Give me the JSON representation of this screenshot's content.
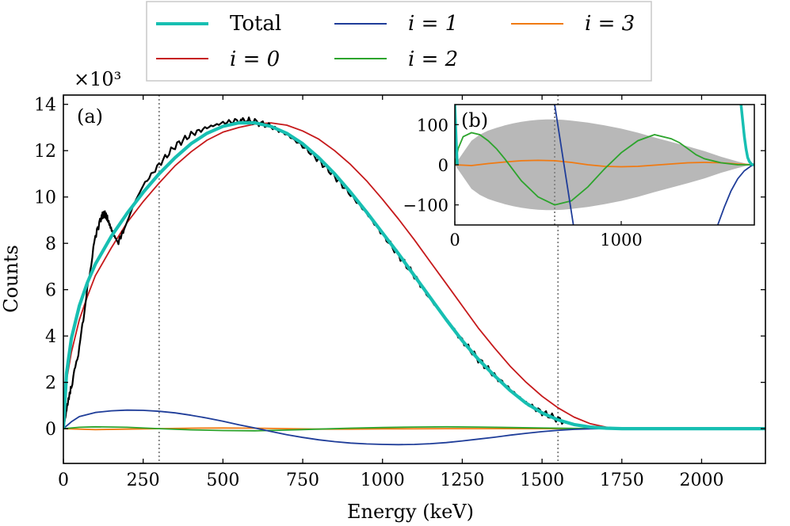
{
  "chart_data": [
    {
      "type": "line",
      "panel_label": "(a)",
      "xlabel": "Energy (keV)",
      "ylabel": "Counts",
      "yscale_label": "×10³",
      "xlim": [
        0,
        2200
      ],
      "ylim": [
        -1.5,
        14.4
      ],
      "xticks": [
        0,
        250,
        500,
        750,
        1000,
        1250,
        1500,
        1750,
        2000
      ],
      "yticks": [
        0,
        2,
        4,
        6,
        8,
        10,
        12,
        14
      ],
      "vlines": [
        300,
        1550
      ],
      "legend": {
        "placement": "top-center",
        "entries": [
          {
            "label": "Total",
            "color": "#17bfb2"
          },
          {
            "label": "i = 0",
            "color": "#c6191b"
          },
          {
            "label": "i = 1",
            "color": "#1f3d99"
          },
          {
            "label": "i = 2",
            "color": "#2ca42c"
          },
          {
            "label": "i = 3",
            "color": "#f07a12"
          }
        ]
      },
      "series": [
        {
          "name": "Data",
          "color": "#000000",
          "x": [
            0,
            10,
            25,
            50,
            75,
            100,
            120,
            130,
            140,
            155,
            170,
            190,
            220,
            250,
            300,
            350,
            400,
            450,
            500,
            550,
            575,
            600,
            650,
            700,
            750,
            800,
            850,
            900,
            950,
            1000,
            1050,
            1100,
            1150,
            1200,
            1250,
            1300,
            1350,
            1400,
            1450,
            1500,
            1550,
            1600,
            1650,
            1700,
            1750,
            1800,
            2000,
            2200
          ],
          "y": [
            0,
            0.8,
            1.8,
            3.5,
            6.0,
            8.3,
            9.2,
            9.25,
            9.0,
            8.4,
            8.0,
            8.6,
            9.7,
            10.5,
            11.4,
            12.2,
            12.7,
            13.0,
            13.2,
            13.3,
            13.3,
            13.25,
            13.05,
            12.7,
            12.2,
            11.6,
            10.9,
            10.1,
            9.3,
            8.4,
            7.5,
            6.6,
            5.6,
            4.7,
            3.8,
            3.0,
            2.3,
            1.7,
            1.1,
            0.7,
            0.4,
            0.18,
            0.07,
            0.02,
            0.0,
            0.0,
            0.0,
            0.0
          ]
        },
        {
          "name": "Total",
          "color": "#17bfb2",
          "x": [
            0,
            10,
            25,
            50,
            75,
            100,
            150,
            200,
            250,
            300,
            350,
            400,
            450,
            500,
            550,
            600,
            650,
            700,
            750,
            800,
            850,
            900,
            950,
            1000,
            1050,
            1100,
            1150,
            1200,
            1250,
            1300,
            1350,
            1400,
            1450,
            1500,
            1550,
            1600,
            1650,
            1700,
            1750,
            1800,
            2000,
            2200
          ],
          "y": [
            0,
            2.4,
            3.9,
            5.3,
            6.3,
            7.1,
            8.3,
            9.3,
            10.2,
            11.0,
            11.7,
            12.3,
            12.75,
            13.05,
            13.2,
            13.2,
            13.05,
            12.75,
            12.3,
            11.7,
            11.0,
            10.2,
            9.35,
            8.45,
            7.55,
            6.6,
            5.65,
            4.7,
            3.8,
            3.0,
            2.3,
            1.65,
            1.1,
            0.68,
            0.38,
            0.18,
            0.07,
            0.02,
            0.0,
            0.0,
            0.0,
            0.0
          ]
        },
        {
          "name": "i = 0",
          "color": "#c6191b",
          "x": [
            0,
            10,
            25,
            50,
            75,
            100,
            150,
            200,
            250,
            300,
            350,
            400,
            450,
            500,
            550,
            600,
            650,
            700,
            750,
            800,
            850,
            900,
            950,
            1000,
            1050,
            1100,
            1150,
            1200,
            1250,
            1300,
            1350,
            1400,
            1450,
            1500,
            1550,
            1600,
            1650,
            1700,
            1750,
            2000,
            2200
          ],
          "y": [
            0,
            2.1,
            3.3,
            4.7,
            5.7,
            6.6,
            7.8,
            8.9,
            9.8,
            10.6,
            11.35,
            11.95,
            12.45,
            12.8,
            13.0,
            13.15,
            13.2,
            13.1,
            12.85,
            12.5,
            12.0,
            11.4,
            10.7,
            9.9,
            9.05,
            8.15,
            7.2,
            6.25,
            5.3,
            4.35,
            3.5,
            2.7,
            2.0,
            1.4,
            0.9,
            0.5,
            0.22,
            0.07,
            0.0,
            0.0,
            0.0
          ]
        },
        {
          "name": "i = 1",
          "color": "#1f3d99",
          "x": [
            0,
            25,
            50,
            100,
            150,
            200,
            250,
            300,
            350,
            400,
            450,
            500,
            550,
            600,
            650,
            700,
            750,
            800,
            850,
            900,
            950,
            1000,
            1050,
            1100,
            1150,
            1200,
            1250,
            1300,
            1350,
            1400,
            1450,
            1500,
            1550,
            1600,
            1650,
            1700,
            1750,
            2000,
            2200
          ],
          "y": [
            0,
            0.3,
            0.52,
            0.7,
            0.77,
            0.8,
            0.79,
            0.75,
            0.68,
            0.58,
            0.46,
            0.32,
            0.17,
            0.03,
            -0.12,
            -0.26,
            -0.38,
            -0.48,
            -0.56,
            -0.62,
            -0.66,
            -0.68,
            -0.69,
            -0.68,
            -0.65,
            -0.6,
            -0.53,
            -0.45,
            -0.37,
            -0.28,
            -0.2,
            -0.13,
            -0.07,
            -0.03,
            -0.01,
            0.0,
            0.0,
            0.0,
            0.0
          ]
        },
        {
          "name": "i = 2",
          "color": "#2ca42c",
          "x": [
            0,
            50,
            100,
            200,
            300,
            400,
            500,
            600,
            700,
            800,
            900,
            1000,
            1100,
            1200,
            1300,
            1400,
            1500,
            1600,
            1700,
            1800,
            2000,
            2200
          ],
          "y": [
            0,
            0.06,
            0.08,
            0.06,
            0.0,
            -0.05,
            -0.08,
            -0.09,
            -0.06,
            -0.02,
            0.02,
            0.05,
            0.07,
            0.08,
            0.07,
            0.05,
            0.03,
            0.01,
            0.0,
            0.0,
            0.0,
            0.0
          ]
        },
        {
          "name": "i = 3",
          "color": "#f07a12",
          "x": [
            0,
            100,
            200,
            300,
            400,
            500,
            600,
            700,
            800,
            900,
            1000,
            1200,
            1400,
            1600,
            1800,
            2200
          ],
          "y": [
            0,
            -0.04,
            -0.02,
            0.0,
            0.02,
            0.03,
            0.02,
            0.0,
            -0.02,
            -0.02,
            -0.01,
            0.0,
            0.0,
            0.0,
            0.0,
            0.0
          ]
        }
      ]
    },
    {
      "type": "line",
      "panel_label": "(b)",
      "placement": "inset top-right",
      "xlim": [
        0,
        1800
      ],
      "ylim": [
        -150,
        150
      ],
      "xticks": [
        0,
        1000
      ],
      "yticks": [
        -100,
        0,
        100
      ],
      "vlines": [
        600
      ],
      "band": {
        "name": "uncertainty",
        "color": "#b8b8b8",
        "x": [
          0,
          50,
          100,
          150,
          200,
          250,
          300,
          350,
          400,
          450,
          500,
          550,
          600,
          650,
          700,
          800,
          900,
          1000,
          1100,
          1200,
          1300,
          1400,
          1500,
          1600,
          1700,
          1750,
          1800
        ],
        "upper": [
          0,
          30,
          60,
          75,
          85,
          92,
          98,
          103,
          107,
          110,
          112,
          113,
          113,
          112,
          110,
          105,
          98,
          90,
          80,
          68,
          57,
          46,
          34,
          20,
          8,
          3,
          0
        ],
        "lower": [
          0,
          -30,
          -60,
          -75,
          -85,
          -92,
          -98,
          -103,
          -107,
          -110,
          -112,
          -113,
          -113,
          -112,
          -110,
          -105,
          -98,
          -90,
          -80,
          -68,
          -57,
          -46,
          -34,
          -20,
          -8,
          -3,
          0
        ]
      },
      "series": [
        {
          "name": "Total",
          "color": "#17bfb2",
          "x": [
            0,
            8,
            15,
            1720,
            1730,
            1740,
            1750,
            1760,
            1770,
            1780,
            1790,
            1800
          ],
          "y": [
            150,
            60,
            0,
            150,
            110,
            70,
            40,
            18,
            8,
            3,
            0,
            0
          ]
        },
        {
          "name": "i = 1",
          "color": "#1f3d99",
          "x": [
            600,
            630,
            660,
            690,
            720,
            1580,
            1620,
            1660,
            1700,
            1740,
            1780,
            1800
          ],
          "y": [
            150,
            70,
            -10,
            -90,
            -170,
            -150,
            -105,
            -65,
            -35,
            -15,
            -3,
            0
          ]
        },
        {
          "name": "i = 2",
          "color": "#2ca42c",
          "x": [
            0,
            20,
            50,
            100,
            150,
            200,
            250,
            300,
            400,
            500,
            600,
            700,
            800,
            900,
            1000,
            1100,
            1200,
            1300,
            1350,
            1400,
            1450,
            1500,
            1600,
            1700,
            1800
          ],
          "y": [
            0,
            40,
            70,
            80,
            75,
            60,
            40,
            15,
            -40,
            -80,
            -100,
            -90,
            -55,
            -10,
            30,
            60,
            75,
            65,
            55,
            40,
            25,
            15,
            5,
            0,
            0
          ]
        },
        {
          "name": "i = 3",
          "color": "#f07a12",
          "x": [
            0,
            100,
            200,
            300,
            400,
            500,
            600,
            700,
            800,
            900,
            1000,
            1100,
            1200,
            1300,
            1400,
            1500,
            1600,
            1700,
            1800
          ],
          "y": [
            0,
            -2,
            3,
            7,
            10,
            11,
            10,
            6,
            0,
            -4,
            -5,
            -4,
            -1,
            2,
            5,
            6,
            5,
            2,
            0
          ]
        }
      ]
    }
  ]
}
